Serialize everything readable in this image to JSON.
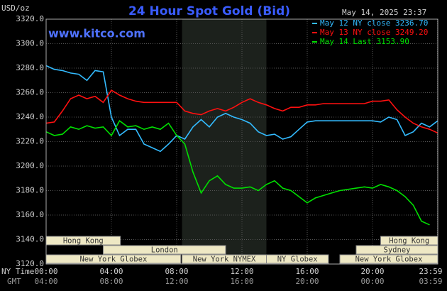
{
  "chart_data": {
    "type": "line",
    "title": "24 Hour Spot Gold (Bid)",
    "timestamp": "May 14, 2025 23:37",
    "watermark": "www.kitco.com",
    "y_label": "USD/oz",
    "x_label": "NY Time",
    "x2_label": "GMT",
    "xlim": [
      0,
      24
    ],
    "ylim": [
      3120,
      3320
    ],
    "yticks": [
      {
        "value": 3120,
        "label": "3120.0"
      },
      {
        "value": 3140,
        "label": "3140.0"
      },
      {
        "value": 3160,
        "label": "3160.0"
      },
      {
        "value": 3180,
        "label": "3180.0"
      },
      {
        "value": 3200,
        "label": "3200.0"
      },
      {
        "value": 3220,
        "label": "3220.0"
      },
      {
        "value": 3240,
        "label": "3240.0"
      },
      {
        "value": 3260,
        "label": "3260.0"
      },
      {
        "value": 3280,
        "label": "3280.0"
      },
      {
        "value": 3300,
        "label": "3300.0"
      },
      {
        "value": 3320,
        "label": "3320.0"
      }
    ],
    "xticks": [
      {
        "value": 0,
        "label": "00:00"
      },
      {
        "value": 4,
        "label": "04:00"
      },
      {
        "value": 8,
        "label": "08:00"
      },
      {
        "value": 12,
        "label": "12:00"
      },
      {
        "value": 16,
        "label": "16:00"
      },
      {
        "value": 20,
        "label": "20:00"
      },
      {
        "value": 23.98,
        "label": "23:59"
      }
    ],
    "x2_labels": [
      "04:00",
      "08:00",
      "12:00",
      "16:00",
      "20:00",
      "00:00",
      "03:59"
    ],
    "grid": true,
    "shaded": [
      8.33,
      13.5
    ],
    "sessions": [
      {
        "label": "Hong Kong",
        "start": 0,
        "end": 4.55,
        "row": 0
      },
      {
        "label": "Hong Kong",
        "start": 20.5,
        "end": 24,
        "row": 0
      },
      {
        "label": "London",
        "start": 3.5,
        "end": 11,
        "row": 1
      },
      {
        "label": "Sydney",
        "start": 19,
        "end": 24,
        "row": 1
      },
      {
        "label": "New York Globex",
        "start": 0,
        "end": 8.25,
        "row": 2
      },
      {
        "label": "New York NYMEX",
        "start": 8.33,
        "end": 13.5,
        "row": 2
      },
      {
        "label": "NY Globex",
        "start": 13.5,
        "end": 17.3,
        "row": 2
      },
      {
        "label": "New York Globex",
        "start": 18,
        "end": 24,
        "row": 2
      }
    ],
    "x": [
      0,
      0.5,
      1,
      1.5,
      2,
      2.5,
      3,
      3.5,
      4,
      4.5,
      5,
      5.5,
      6,
      6.5,
      7,
      7.5,
      8,
      8.5,
      9,
      9.5,
      10,
      10.5,
      11,
      11.5,
      12,
      12.5,
      13,
      13.5,
      14,
      14.5,
      15,
      15.5,
      16,
      16.5,
      17,
      17.5,
      18,
      18.5,
      19,
      19.5,
      20,
      20.5,
      21,
      21.5,
      22,
      22.5,
      23,
      23.5,
      24
    ],
    "series": [
      {
        "name": "May 12 NY close 3236.70",
        "color": "#33bbff",
        "values": [
          3282,
          3279,
          3278,
          3276,
          3275,
          3270,
          3278,
          3277,
          3240,
          3225,
          3230,
          3230,
          3218,
          3215,
          3212,
          3218,
          3225,
          3222,
          3232,
          3238,
          3232,
          3240,
          3243,
          3240,
          3238,
          3235,
          3228,
          3225,
          3226,
          3222,
          3224,
          3230,
          3236,
          3237,
          3237,
          3237,
          3237,
          3237,
          3237,
          3237,
          3237,
          3236,
          3240,
          3238,
          3225,
          3228,
          3235,
          3232,
          3237
        ]
      },
      {
        "name": "May 13 NY close 3249.20",
        "color": "#ff1010",
        "values": [
          3235,
          3236,
          3245,
          3255,
          3258,
          3255,
          3257,
          3252,
          3262,
          3258,
          3255,
          3253,
          3252,
          3252,
          3252,
          3252,
          3252,
          3245,
          3243,
          3242,
          3245,
          3247,
          3245,
          3248,
          3252,
          3255,
          3252,
          3250,
          3247,
          3245,
          3248,
          3248,
          3250,
          3250,
          3251,
          3251,
          3251,
          3251,
          3251,
          3251,
          3253,
          3253,
          3254,
          3246,
          3240,
          3235,
          3232,
          3230,
          3227
        ]
      },
      {
        "name": "May 14 Last 3153.90",
        "color": "#00e000",
        "values": [
          3228,
          3225,
          3226,
          3232,
          3230,
          3233,
          3231,
          3232,
          3225,
          3237,
          3232,
          3233,
          3230,
          3232,
          3230,
          3235,
          3225,
          3218,
          3195,
          3178,
          3188,
          3192,
          3185,
          3182,
          3182,
          3183,
          3180,
          3185,
          3188,
          3182,
          3180,
          3175,
          3170,
          3174,
          3176,
          3178,
          3180,
          3181,
          3182,
          3183,
          3182,
          3185,
          3183,
          3180,
          3175,
          3168,
          3155,
          3152,
          null
        ]
      }
    ]
  }
}
